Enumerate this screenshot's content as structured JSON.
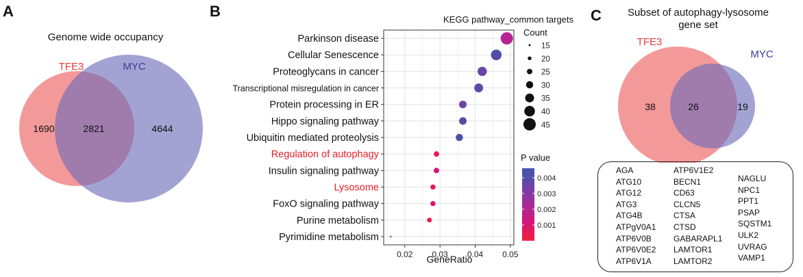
{
  "panels": {
    "A": {
      "letter": "A",
      "title": "Genome wide occupancy",
      "venn": {
        "left_label": "TFE3",
        "right_label": "MYC",
        "left_only": 1690,
        "overlap": 2821,
        "right_only": 4644,
        "left_color": "#f08080",
        "right_color": "#7b7bc0",
        "left_label_color": "#e83a3a",
        "right_label_color": "#3c3c9a"
      }
    },
    "C": {
      "letter": "C",
      "title_line1": "Subset of autophagy-lysosome",
      "title_line2": "gene set",
      "venn": {
        "left_label": "TFE3",
        "right_label": "MYC",
        "left_only": 38,
        "overlap": 26,
        "right_only": 19,
        "left_color": "#f08080",
        "right_color": "#7b7bc0",
        "left_label_color": "#e83a3a",
        "right_label_color": "#3c3c9a"
      },
      "genes": {
        "col1": [
          "AGA",
          "ATG10",
          "ATG12",
          "ATG3",
          "ATG4B",
          "ATPgV0A1",
          "ATP6V0B",
          "ATP6V0E2",
          "ATP6V1A"
        ],
        "col2": [
          "ATP6V1E2",
          "BECN1",
          "CD63",
          "CLCN5",
          "CTSA",
          "CTSD",
          "GABARAPL1",
          "LAMTOR1",
          "LAMTOR2"
        ],
        "col3": [
          "NAGLU",
          "NPC1",
          "PPT1",
          "PSAP",
          "SQSTM1",
          "ULK2",
          "UVRAG",
          "VAMP1"
        ]
      }
    },
    "B": {
      "letter": "B"
    }
  },
  "chart_data": {
    "type": "scatter",
    "title": "KEGG pathway_common targets",
    "xlabel": "GeneRatio",
    "ylabel": "",
    "xlim": [
      0.014,
      0.051
    ],
    "xticks": [
      0.02,
      0.03,
      0.04,
      0.05
    ],
    "xtick_labels": [
      "0.02",
      "0.03",
      "0.04",
      "0.05"
    ],
    "grid": true,
    "highlight_color": "#e8202a",
    "normal_label_color": "#111111",
    "points": [
      {
        "pathway": "Parkinson disease",
        "gene_ratio": 0.049,
        "count": 45,
        "p_value": 0.002,
        "highlight": false
      },
      {
        "pathway": "Cellular Senescence",
        "gene_ratio": 0.046,
        "count": 40,
        "p_value": 0.0042,
        "highlight": false
      },
      {
        "pathway": "Proteoglycans in cancer",
        "gene_ratio": 0.042,
        "count": 36,
        "p_value": 0.0036,
        "highlight": false
      },
      {
        "pathway": "Transcriptional misregulation in cancer",
        "gene_ratio": 0.041,
        "count": 35,
        "p_value": 0.0039,
        "highlight": false
      },
      {
        "pathway": "Protein processing in ER",
        "gene_ratio": 0.0365,
        "count": 31,
        "p_value": 0.0035,
        "highlight": false
      },
      {
        "pathway": "Hippo signaling pathway",
        "gene_ratio": 0.0365,
        "count": 31,
        "p_value": 0.0041,
        "highlight": false
      },
      {
        "pathway": "Ubiquitin mediated proteolysis",
        "gene_ratio": 0.0355,
        "count": 30,
        "p_value": 0.0044,
        "highlight": false
      },
      {
        "pathway": "Regulation of autophagy",
        "gene_ratio": 0.029,
        "count": 25,
        "p_value": 0.0004,
        "highlight": true
      },
      {
        "pathway": "Insulin signaling pathway",
        "gene_ratio": 0.029,
        "count": 25,
        "p_value": 0.0012,
        "highlight": false
      },
      {
        "pathway": "Lysosome",
        "gene_ratio": 0.028,
        "count": 24,
        "p_value": 0.0006,
        "highlight": true
      },
      {
        "pathway": "FoxO signaling pathway",
        "gene_ratio": 0.028,
        "count": 24,
        "p_value": 0.001,
        "highlight": false
      },
      {
        "pathway": "Purine metabolism",
        "gene_ratio": 0.027,
        "count": 23,
        "p_value": 0.0003,
        "highlight": false
      },
      {
        "pathway": "Pyrimidine metabolism",
        "gene_ratio": 0.016,
        "count": 14,
        "p_value": 0.003,
        "highlight": false
      }
    ],
    "size_legend": {
      "title": "Count",
      "values": [
        15,
        20,
        25,
        30,
        35,
        40,
        45
      ]
    },
    "color_legend": {
      "title": "P value",
      "ticks": [
        0.004,
        0.003,
        0.002,
        0.001
      ],
      "tick_labels": [
        "0.004",
        "0.003",
        "0.002",
        "0.001"
      ],
      "range": [
        0.0,
        0.0046
      ],
      "colors": [
        "#f0203a",
        "#d4147a",
        "#a72c9a",
        "#6f43a8",
        "#3e55a9"
      ]
    }
  }
}
